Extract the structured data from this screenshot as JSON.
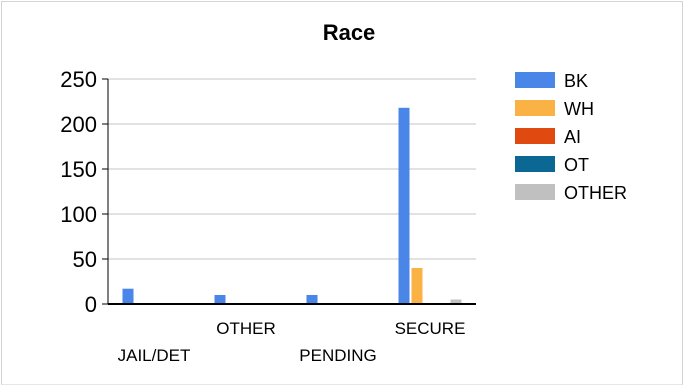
{
  "chart_data": {
    "type": "bar",
    "title": "Race",
    "xlabel": "",
    "ylabel": "",
    "categories": [
      "JAIL/DET",
      "OTHER",
      "PENDING",
      "SECURE"
    ],
    "series": [
      {
        "name": "BK",
        "color": "#4a86e8",
        "values": [
          17,
          10,
          10,
          218
        ]
      },
      {
        "name": "WH",
        "color": "#fbb244",
        "values": [
          0,
          0,
          0,
          40
        ]
      },
      {
        "name": "AI",
        "color": "#e04a10",
        "values": [
          0,
          0,
          0,
          0
        ]
      },
      {
        "name": "OT",
        "color": "#0b6793",
        "values": [
          0,
          0,
          0,
          0
        ]
      },
      {
        "name": "OTHER",
        "color": "#c0c0c0",
        "values": [
          0,
          0,
          1,
          5
        ]
      }
    ],
    "yticks": [
      0,
      50,
      100,
      150,
      200,
      250
    ],
    "ylim": [
      0,
      250
    ],
    "grid": true,
    "legend": "right"
  }
}
